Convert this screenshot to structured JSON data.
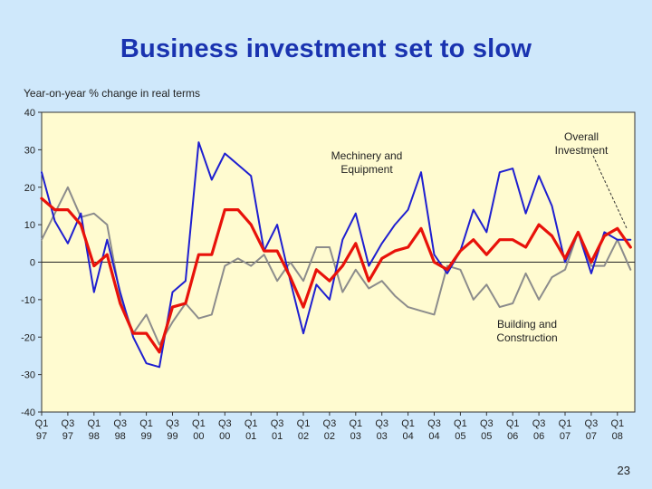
{
  "title": "Business investment set to slow",
  "slide_number": "23",
  "colors": {
    "background": "#cfe8fb",
    "plot_bg": "#fffbd0",
    "title": "#1a33b0",
    "machinery": "#1f1fd0",
    "building": "#8c8c8c",
    "overall": "#e8120a"
  },
  "chart_data": {
    "type": "line",
    "title": "Business investment set to slow",
    "ylabel": "Year-on-year % change in real terms",
    "xlabel": "",
    "ylim": [
      -40,
      40
    ],
    "yticks": [
      40,
      30,
      20,
      10,
      0,
      -10,
      -20,
      -30,
      -40
    ],
    "grid": false,
    "x_tick_labels": [
      {
        "q": "Q1",
        "y": "97"
      },
      {
        "q": "Q3",
        "y": "97"
      },
      {
        "q": "Q1",
        "y": "98"
      },
      {
        "q": "Q3",
        "y": "98"
      },
      {
        "q": "Q1",
        "y": "99"
      },
      {
        "q": "Q3",
        "y": "99"
      },
      {
        "q": "Q1",
        "y": "00"
      },
      {
        "q": "Q3",
        "y": "00"
      },
      {
        "q": "Q1",
        "y": "01"
      },
      {
        "q": "Q3",
        "y": "01"
      },
      {
        "q": "Q1",
        "y": "02"
      },
      {
        "q": "Q3",
        "y": "02"
      },
      {
        "q": "Q1",
        "y": "03"
      },
      {
        "q": "Q3",
        "y": "03"
      },
      {
        "q": "Q1",
        "y": "04"
      },
      {
        "q": "Q3",
        "y": "04"
      },
      {
        "q": "Q1",
        "y": "05"
      },
      {
        "q": "Q3",
        "y": "05"
      },
      {
        "q": "Q1",
        "y": "06"
      },
      {
        "q": "Q3",
        "y": "06"
      },
      {
        "q": "Q1",
        "y": "07"
      },
      {
        "q": "Q3",
        "y": "07"
      },
      {
        "q": "Q1",
        "y": "08"
      }
    ],
    "series": [
      {
        "name": "Mechinery and Equipment",
        "label_lines": [
          "Mechinery and",
          "Equipment"
        ],
        "color": "#1f1fd0",
        "values": [
          24,
          11,
          5,
          13,
          -8,
          6,
          -8,
          -20,
          -27,
          -28,
          -8,
          -5,
          32,
          22,
          29,
          26,
          23,
          3,
          10,
          -5,
          -19,
          -6,
          -10,
          6,
          13,
          -1,
          5,
          10,
          14,
          24,
          2,
          -3,
          3,
          14,
          8,
          24,
          25,
          13,
          23,
          15,
          0,
          8,
          -3,
          8,
          6,
          6
        ]
      },
      {
        "name": "Building and Construction",
        "label_lines": [
          "Building and",
          "Construction"
        ],
        "color": "#8c8c8c",
        "values": [
          6,
          13,
          20,
          12,
          13,
          10,
          -9,
          -19,
          -14,
          -22,
          -16,
          -11,
          -15,
          -14,
          -1,
          1,
          -1,
          2,
          -5,
          0,
          -5,
          4,
          4,
          -8,
          -2,
          -7,
          -5,
          -9,
          -12,
          -13,
          -14,
          -1,
          -2,
          -10,
          -6,
          -12,
          -11,
          -3,
          -10,
          -4,
          -2,
          8,
          -1,
          -1,
          6,
          -2
        ]
      },
      {
        "name": "Overall Investment",
        "label_lines": [
          "Overall",
          "Investment"
        ],
        "color": "#e8120a",
        "values": [
          17,
          14,
          14,
          10,
          -1,
          2,
          -11,
          -19,
          -19,
          -24,
          -12,
          -11,
          2,
          2,
          14,
          14,
          10,
          3,
          3,
          -4,
          -12,
          -2,
          -5,
          -1,
          5,
          -5,
          1,
          3,
          4,
          9,
          0,
          -2,
          3,
          6,
          2,
          6,
          6,
          4,
          10,
          7,
          1,
          8,
          0,
          7,
          9,
          4
        ]
      }
    ]
  }
}
